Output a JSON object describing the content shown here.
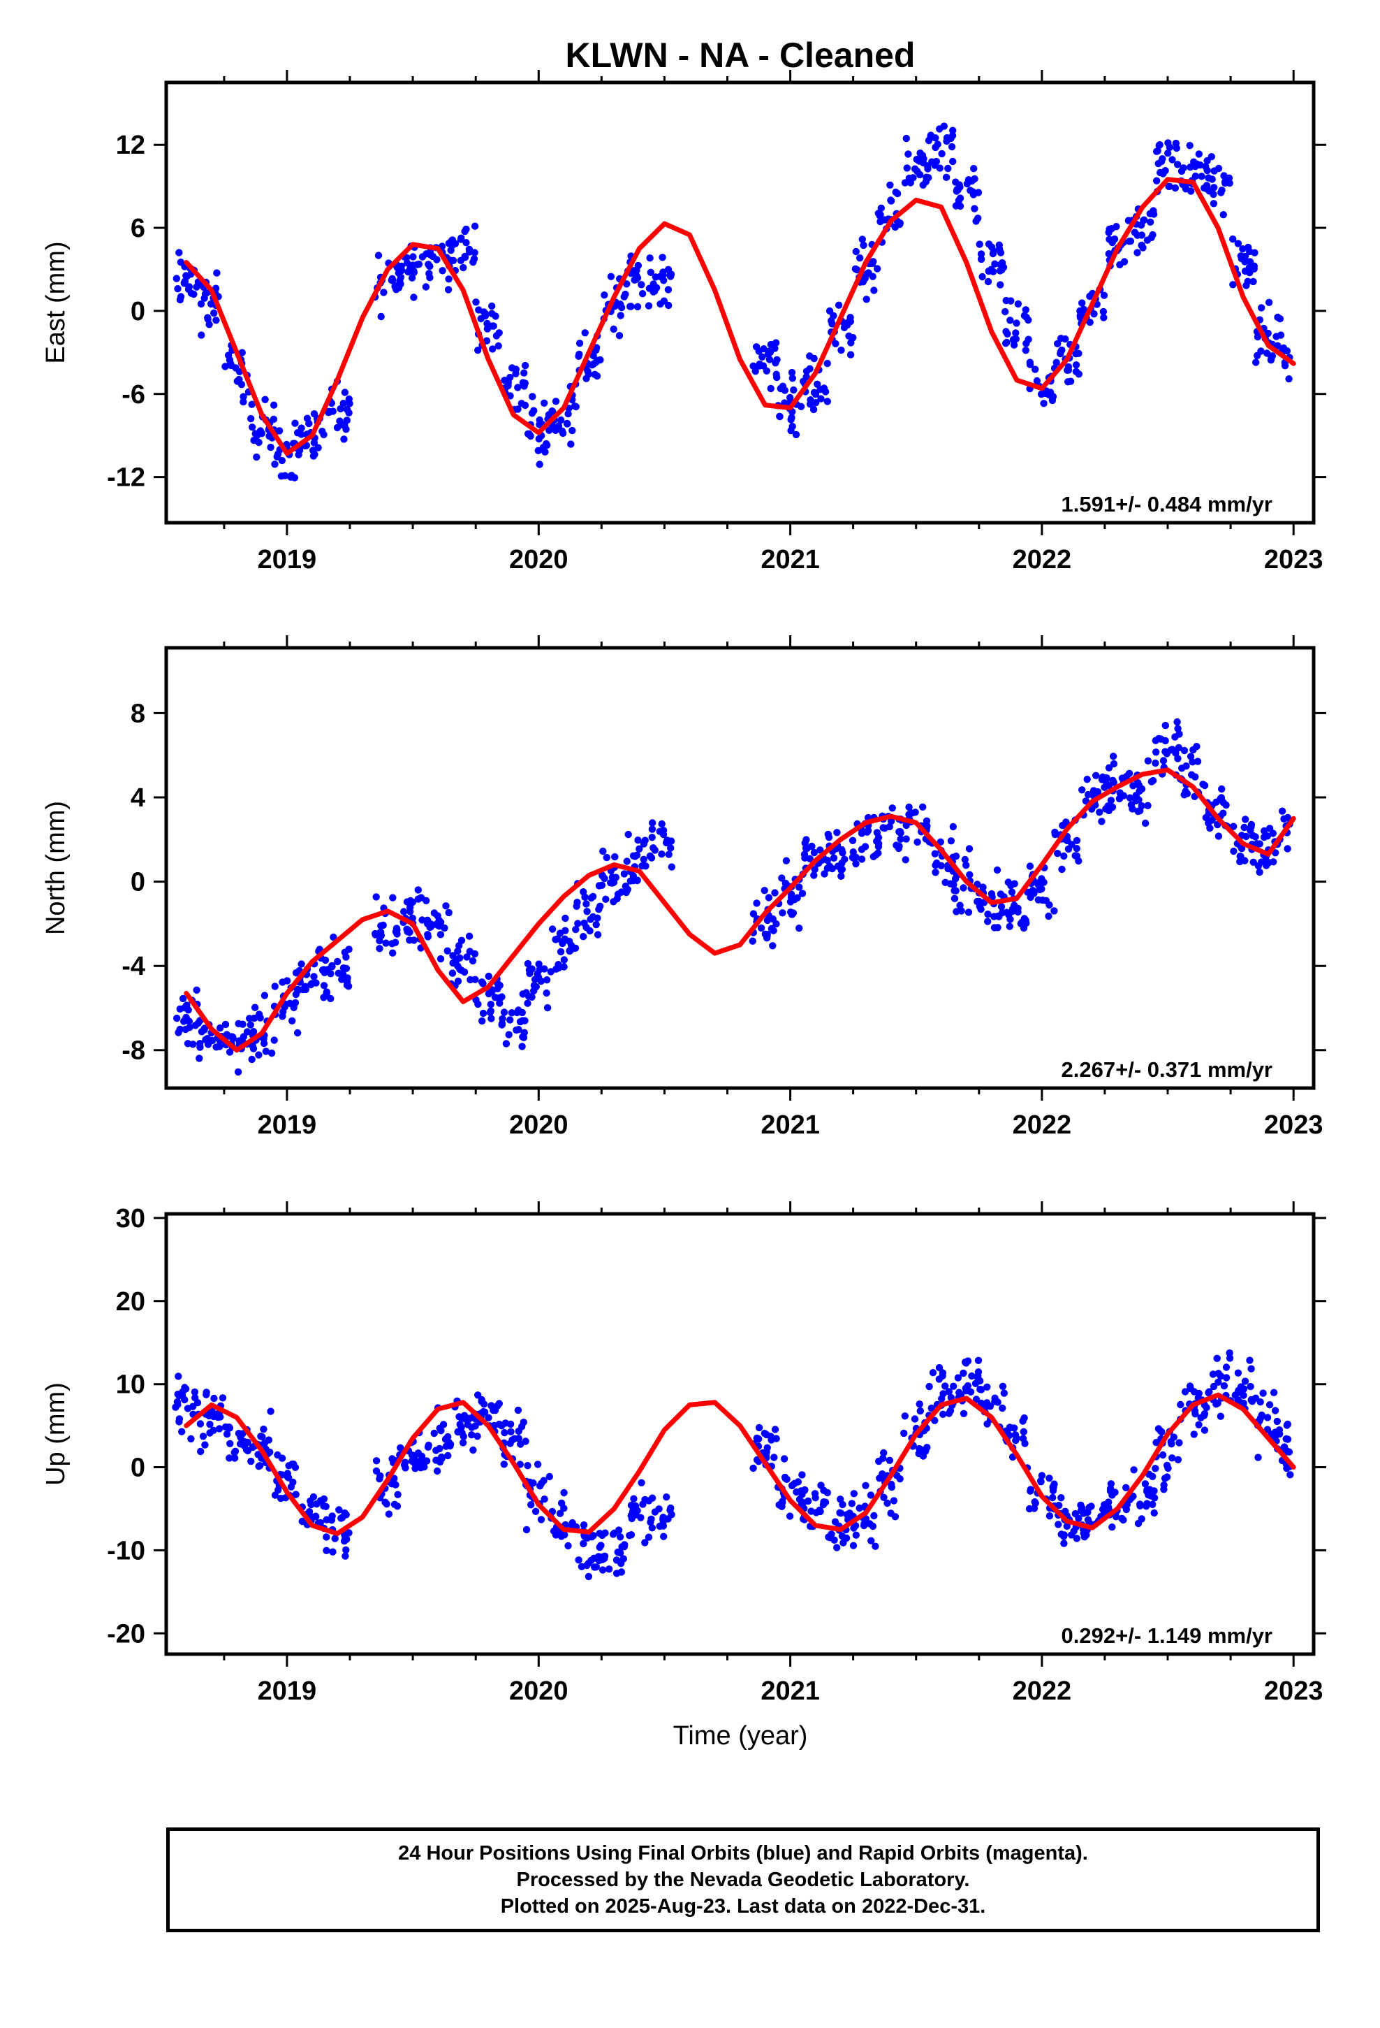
{
  "title": "KLWN  - NA - Cleaned",
  "xlabel": "Time (year)",
  "colors": {
    "points": "#0000ff",
    "model": "#ff0000",
    "frame": "#000000"
  },
  "chart_data": [
    {
      "type": "scatter",
      "component": "East",
      "ylabel": "East (mm)",
      "xlim": [
        2018.52,
        2023.08
      ],
      "ylim": [
        -15.3,
        16.5
      ],
      "xticks": [
        2019,
        2020,
        2021,
        2022,
        2023
      ],
      "yticks": [
        -12,
        -6,
        0,
        6,
        12
      ],
      "rate_text": "1.591+/- 0.484 mm/yr",
      "series": [
        {
          "values": {
            "x": [
              2018.6,
              2018.7,
              2018.8,
              2018.9,
              2019.0,
              2019.1,
              2019.2,
              2019.4,
              2019.5,
              2019.6,
              2019.7,
              2019.8,
              2019.9,
              2020.0,
              2020.1,
              2020.2,
              2020.3,
              2020.4,
              2020.5,
              2020.9,
              2021.0,
              2021.1,
              2021.2,
              2021.3,
              2021.4,
              2021.5,
              2021.6,
              2021.7,
              2021.8,
              2021.9,
              2022.0,
              2022.1,
              2022.2,
              2022.3,
              2022.4,
              2022.5,
              2022.6,
              2022.7,
              2022.8,
              2022.9,
              2023.0
            ],
            "y": [
              2.2,
              0.5,
              -4.5,
              -8.5,
              -10.0,
              -8.8,
              -7.5,
              2.0,
              3.5,
              3.8,
              4.2,
              -1.0,
              -5.5,
              -8.5,
              -7.2,
              -3.5,
              0.5,
              2.5,
              2.0,
              -3.5,
              -6.8,
              -5.5,
              -1.0,
              3.0,
              6.5,
              10.5,
              11.5,
              8.0,
              3.5,
              -1.5,
              -5.5,
              -4.0,
              0.5,
              4.5,
              6.0,
              10.5,
              10.0,
              9.0,
              3.5,
              -2.0,
              -3.5
            ]
          }
        },
        {
          "name": "model",
          "values": {
            "x": [
              2018.6,
              2018.7,
              2018.8,
              2018.9,
              2019.0,
              2019.1,
              2019.2,
              2019.3,
              2019.4,
              2019.5,
              2019.6,
              2019.7,
              2019.8,
              2019.9,
              2020.0,
              2020.1,
              2020.2,
              2020.3,
              2020.4,
              2020.5,
              2020.6,
              2020.7,
              2020.8,
              2020.9,
              2021.0,
              2021.1,
              2021.2,
              2021.3,
              2021.4,
              2021.5,
              2021.6,
              2021.7,
              2021.8,
              2021.9,
              2022.0,
              2022.1,
              2022.2,
              2022.3,
              2022.4,
              2022.5,
              2022.6,
              2022.7,
              2022.8,
              2022.9,
              2023.0
            ],
            "y": [
              3.5,
              1.5,
              -3.0,
              -7.5,
              -10.3,
              -9.0,
              -5.0,
              -0.5,
              3.0,
              4.8,
              4.5,
              1.5,
              -3.5,
              -7.5,
              -8.8,
              -7.0,
              -3.0,
              1.0,
              4.5,
              6.3,
              5.5,
              1.5,
              -3.5,
              -6.8,
              -7.0,
              -4.5,
              -0.5,
              3.5,
              6.5,
              8.0,
              7.5,
              3.5,
              -1.5,
              -5.0,
              -5.6,
              -3.5,
              0.5,
              4.5,
              7.5,
              9.5,
              9.3,
              6.0,
              1.0,
              -2.5,
              -3.8
            ]
          }
        }
      ]
    },
    {
      "type": "scatter",
      "component": "North",
      "ylabel": "North (mm)",
      "xlim": [
        2018.52,
        2023.08
      ],
      "ylim": [
        -9.8,
        11.1
      ],
      "xticks": [
        2019,
        2020,
        2021,
        2022,
        2023
      ],
      "yticks": [
        -8,
        -4,
        0,
        4,
        8
      ],
      "rate_text": "2.267+/- 0.371 mm/yr",
      "series": [
        {
          "values": {
            "x": [
              2018.6,
              2018.7,
              2018.8,
              2018.9,
              2019.0,
              2019.1,
              2019.2,
              2019.4,
              2019.5,
              2019.6,
              2019.7,
              2019.8,
              2019.9,
              2020.0,
              2020.1,
              2020.2,
              2020.3,
              2020.4,
              2020.5,
              2020.9,
              2021.0,
              2021.1,
              2021.2,
              2021.3,
              2021.4,
              2021.5,
              2021.6,
              2021.7,
              2021.8,
              2021.9,
              2022.0,
              2022.1,
              2022.2,
              2022.3,
              2022.4,
              2022.5,
              2022.6,
              2022.7,
              2022.8,
              2022.9,
              2023.0
            ],
            "y": [
              -6.5,
              -7.5,
              -7.5,
              -7.0,
              -5.5,
              -4.5,
              -4.0,
              -2.5,
              -1.5,
              -2.0,
              -4.0,
              -5.5,
              -6.5,
              -5.0,
              -3.0,
              -1.5,
              0.0,
              1.0,
              2.0,
              -2.0,
              -0.5,
              1.0,
              1.5,
              2.0,
              2.5,
              2.5,
              1.0,
              0.0,
              -1.0,
              -1.5,
              -0.5,
              2.0,
              4.0,
              4.5,
              4.5,
              6.5,
              5.0,
              3.5,
              2.0,
              1.5,
              2.5
            ]
          }
        },
        {
          "name": "model",
          "values": {
            "x": [
              2018.6,
              2018.7,
              2018.8,
              2018.9,
              2019.0,
              2019.1,
              2019.2,
              2019.3,
              2019.4,
              2019.5,
              2019.6,
              2019.7,
              2019.8,
              2019.9,
              2020.0,
              2020.1,
              2020.2,
              2020.3,
              2020.4,
              2020.5,
              2020.6,
              2020.7,
              2020.8,
              2020.9,
              2021.0,
              2021.1,
              2021.2,
              2021.3,
              2021.4,
              2021.5,
              2021.6,
              2021.7,
              2021.8,
              2021.9,
              2022.0,
              2022.1,
              2022.2,
              2022.3,
              2022.4,
              2022.5,
              2022.6,
              2022.7,
              2022.8,
              2022.9,
              2023.0
            ],
            "y": [
              -5.3,
              -7.0,
              -8.0,
              -7.2,
              -5.3,
              -3.8,
              -2.8,
              -1.8,
              -1.4,
              -2.0,
              -4.2,
              -5.7,
              -5.0,
              -3.5,
              -2.0,
              -0.7,
              0.3,
              0.8,
              0.5,
              -1.0,
              -2.5,
              -3.4,
              -3.0,
              -1.5,
              -0.3,
              1.0,
              2.0,
              2.8,
              3.1,
              2.8,
              1.5,
              0.0,
              -1.0,
              -0.8,
              0.8,
              2.5,
              3.8,
              4.5,
              5.1,
              5.3,
              4.5,
              3.0,
              1.8,
              1.3,
              3.0
            ]
          }
        }
      ]
    },
    {
      "type": "scatter",
      "component": "Up",
      "ylabel": "Up (mm)",
      "xlim": [
        2018.52,
        2023.08
      ],
      "ylim": [
        -22.5,
        30.5
      ],
      "xticks": [
        2019,
        2020,
        2021,
        2022,
        2023
      ],
      "yticks": [
        -20,
        -10,
        0,
        10,
        20,
        30
      ],
      "rate_text": "0.292+/- 1.149 mm/yr",
      "series": [
        {
          "values": {
            "x": [
              2018.6,
              2018.7,
              2018.8,
              2018.9,
              2019.0,
              2019.1,
              2019.2,
              2019.4,
              2019.5,
              2019.6,
              2019.7,
              2019.8,
              2019.9,
              2020.0,
              2020.1,
              2020.2,
              2020.3,
              2020.4,
              2020.5,
              2020.9,
              2021.0,
              2021.1,
              2021.2,
              2021.3,
              2021.4,
              2021.5,
              2021.6,
              2021.7,
              2021.8,
              2021.9,
              2022.0,
              2022.1,
              2022.2,
              2022.3,
              2022.4,
              2022.5,
              2022.6,
              2022.7,
              2022.8,
              2022.9,
              2023.0
            ],
            "y": [
              8.0,
              6.0,
              3.0,
              2.0,
              -2.0,
              -6.0,
              -8.0,
              -2.0,
              2.0,
              3.0,
              5.0,
              6.0,
              3.0,
              -3.0,
              -7.0,
              -9.0,
              -10.0,
              -6.0,
              -5.0,
              2.0,
              -3.0,
              -5.0,
              -7.0,
              -6.0,
              -2.0,
              4.0,
              9.0,
              10.0,
              8.0,
              3.0,
              -3.0,
              -7.0,
              -6.0,
              -4.0,
              -3.0,
              2.0,
              7.0,
              10.0,
              9.0,
              5.0,
              2.0
            ]
          }
        },
        {
          "name": "model",
          "values": {
            "x": [
              2018.6,
              2018.7,
              2018.8,
              2018.9,
              2019.0,
              2019.1,
              2019.2,
              2019.3,
              2019.4,
              2019.5,
              2019.6,
              2019.7,
              2019.8,
              2019.9,
              2020.0,
              2020.1,
              2020.2,
              2020.3,
              2020.4,
              2020.5,
              2020.6,
              2020.7,
              2020.8,
              2020.9,
              2021.0,
              2021.1,
              2021.2,
              2021.3,
              2021.4,
              2021.5,
              2021.6,
              2021.7,
              2021.8,
              2021.9,
              2022.0,
              2022.1,
              2022.2,
              2022.3,
              2022.4,
              2022.5,
              2022.6,
              2022.7,
              2022.8,
              2022.9,
              2023.0
            ],
            "y": [
              5.0,
              7.5,
              6.0,
              2.0,
              -3.0,
              -7.0,
              -8.0,
              -6.0,
              -1.5,
              3.5,
              7.0,
              7.8,
              5.0,
              0.5,
              -4.5,
              -7.5,
              -7.8,
              -5.0,
              -0.5,
              4.5,
              7.5,
              7.8,
              5.0,
              0.5,
              -4.0,
              -7.0,
              -7.5,
              -5.5,
              -1.0,
              4.0,
              7.5,
              8.3,
              6.0,
              1.5,
              -3.5,
              -6.5,
              -7.3,
              -5.0,
              -1.0,
              4.0,
              7.5,
              8.7,
              7.0,
              3.5,
              0.0
            ]
          }
        }
      ]
    }
  ],
  "footer": {
    "line1": "24 Hour Positions Using Final Orbits (blue) and Rapid Orbits (magenta).",
    "line2": "Processed by the Nevada Geodetic Laboratory.",
    "line3": "Plotted on 2025-Aug-23. Last data on 2022-Dec-31."
  }
}
